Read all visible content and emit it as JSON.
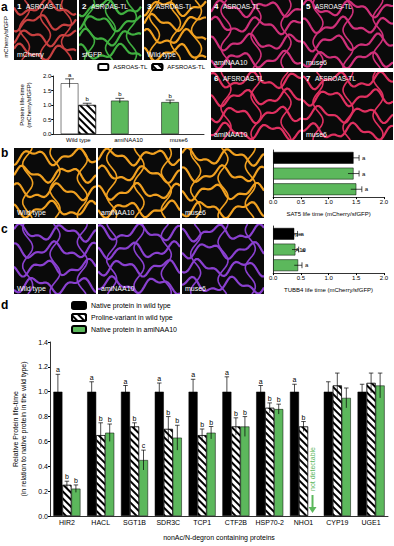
{
  "panels": [
    "a",
    "b",
    "c",
    "d"
  ],
  "side_label": "mCherry/sfGFP",
  "images": {
    "a": [
      {
        "n": "1",
        "tag": "ASROAS-TL",
        "caption": "mCherry",
        "color": "#c84040"
      },
      {
        "n": "2",
        "tag": "ASROAS-TL",
        "caption": "sfGFP",
        "color": "#40b040"
      },
      {
        "n": "3",
        "tag": "ASROAS-TL",
        "caption": "Wild type",
        "color": "#f0a020"
      },
      {
        "n": "4",
        "tag": "ASROAS-TL",
        "caption": "amiNAA10",
        "color": "#d0307a"
      },
      {
        "n": "5",
        "tag": "ASROAS-TL",
        "caption": "muse6",
        "color": "#d0307a"
      },
      {
        "n": "6",
        "tag": "AFSROAS-TL",
        "caption": "amiNAA10",
        "color": "#e03060"
      },
      {
        "n": "7",
        "tag": "AFSROAS-TL",
        "caption": "muse6",
        "color": "#e03060"
      }
    ],
    "b": [
      {
        "caption": "Wild type",
        "color": "#f0a020"
      },
      {
        "caption": "amiNAA10",
        "color": "#f0a020"
      },
      {
        "caption": "muse6",
        "color": "#f0a020"
      }
    ],
    "c": [
      {
        "caption": "Wild type",
        "color": "#8a40d0"
      },
      {
        "caption": "amiNAA10",
        "color": "#8a40d0"
      },
      {
        "caption": "muse6",
        "color": "#8a40d0"
      }
    ]
  },
  "chart_data": [
    {
      "type": "bar",
      "ylabel": "Protein life-time\n(mCherry/sfGFP)",
      "categories": [
        "Wild type",
        "amiNAA10",
        "muse6"
      ],
      "series": [
        {
          "name": "ASROAS-TL",
          "color": "#ffffff",
          "colors": [
            "#ffffff",
            "#5cb85c",
            "#5cb85c"
          ],
          "values": [
            1.75,
            1.15,
            1.1
          ],
          "errors": [
            0.15,
            0.08,
            0.07
          ],
          "letters": [
            "a",
            "b",
            "b"
          ]
        },
        {
          "name": "AFSROAS-TL",
          "color": "#ffffff",
          "marker": "hatched",
          "values": [
            1.0,
            null,
            null
          ],
          "errors": [
            0.06,
            null,
            null
          ],
          "letters": [
            "b",
            null,
            null
          ]
        }
      ],
      "ylim": [
        0,
        2
      ],
      "yticks": [
        {
          "value": 0,
          "label": "0.0"
        },
        {
          "value": 0.5,
          "label": "0.5"
        },
        {
          "value": 1,
          "label": "1.0"
        },
        {
          "value": 1.5,
          "label": "1.5"
        },
        {
          "value": 2,
          "label": "2.0"
        }
      ],
      "legend": "upper right",
      "grid": false
    },
    {
      "type": "bar",
      "orientation": "horizontal",
      "xlabel": "SAT5 life time (mCherry/sfGFP)",
      "categories": [
        "Wild type",
        "amiNAA10",
        "muse6"
      ],
      "series": [
        {
          "name": "SAT5",
          "color": "#000000",
          "colors": [
            "#000000",
            "#5cb85c",
            "#5cb85c"
          ],
          "values": [
            1.45,
            1.45,
            1.5
          ],
          "errors": [
            0.1,
            0.1,
            0.1
          ],
          "letters": [
            "a",
            "a",
            "a"
          ]
        }
      ],
      "xlim": [
        0,
        2
      ],
      "xticks": [
        {
          "value": 0,
          "label": "0.0"
        },
        {
          "value": 0.5,
          "label": "0.5"
        },
        {
          "value": 1,
          "label": "1.0"
        },
        {
          "value": 1.5,
          "label": "1.5"
        },
        {
          "value": 2,
          "label": "2.0"
        }
      ],
      "grid": false
    },
    {
      "type": "bar",
      "orientation": "horizontal",
      "xlabel": "TUBB4 life time (mCherry/sfGFP)",
      "categories": [
        "Wild type",
        "amiNAA10",
        "muse6"
      ],
      "series": [
        {
          "name": "TUBB4",
          "color": "#000000",
          "colors": [
            "#000000",
            "#5cb85c",
            "#5cb85c"
          ],
          "values": [
            0.38,
            0.4,
            0.45
          ],
          "errors": [
            0.06,
            0.06,
            0.07
          ],
          "letters": [
            "a",
            "a",
            "a"
          ]
        }
      ],
      "xlim": [
        0,
        2
      ],
      "xticks": [
        {
          "value": 0,
          "label": "0.0"
        },
        {
          "value": 0.5,
          "label": "0.5"
        },
        {
          "value": 1,
          "label": "1.0"
        },
        {
          "value": 1.5,
          "label": "1.5"
        },
        {
          "value": 2,
          "label": "2.0"
        }
      ],
      "grid": false
    },
    {
      "type": "bar",
      "ylabel": "Relative Protein life-time\n(in relation to native protein in the wild type)",
      "xlabel": "nonAc/N-degron containing proteins",
      "categories": [
        "HIR2",
        "HACL",
        "SGT1B",
        "SDR3C",
        "TCP1",
        "CTF2B",
        "HSP70-2",
        "NHO1",
        "CYP19",
        "UGE1"
      ],
      "series": [
        {
          "name": "Native protein in wild type",
          "color": "#000000",
          "values": [
            1.0,
            1.0,
            1.0,
            1.0,
            1.0,
            1.0,
            1.0,
            1.0,
            1.0,
            1.0
          ],
          "errors": [
            0.14,
            0.08,
            0.05,
            0.07,
            0.1,
            0.12,
            0.05,
            0.06,
            0.08,
            0.06
          ],
          "letters": [
            "a",
            "a",
            "a",
            "a",
            "a",
            "a",
            "a",
            "a",
            null,
            null
          ]
        },
        {
          "name": "Proline-variant in wild type",
          "color": "#ffffff",
          "marker": "hatched",
          "values": [
            0.25,
            0.65,
            0.72,
            0.7,
            0.65,
            0.72,
            0.87,
            0.72,
            1.05,
            1.07
          ],
          "errors": [
            0.03,
            0.1,
            0.03,
            0.1,
            0.05,
            0.07,
            0.04,
            0.04,
            0.1,
            0.08
          ],
          "letters": [
            "b",
            "b",
            "b",
            "b",
            "b",
            "b",
            "b",
            "b",
            null,
            null
          ]
        },
        {
          "name": "Native protein in amiNAA10",
          "color": "#5cb85c",
          "values": [
            0.22,
            0.67,
            0.45,
            0.63,
            0.67,
            0.72,
            0.86,
            null,
            0.95,
            1.05
          ],
          "errors": [
            0.03,
            0.07,
            0.08,
            0.1,
            0.05,
            0.08,
            0.04,
            null,
            0.08,
            0.1
          ],
          "letters": [
            "b",
            "b",
            "c",
            "b",
            "b",
            "b",
            "b",
            null,
            null,
            null
          ]
        }
      ],
      "annotations": [
        {
          "category": "NHO1",
          "series": "Native protein in amiNAA10",
          "text": "not detectable"
        }
      ],
      "ylim": [
        0,
        1.4
      ],
      "yticks": [
        {
          "value": 0,
          "label": "0.0"
        },
        {
          "value": 0.2,
          "label": "0.2"
        },
        {
          "value": 0.4,
          "label": "0.4"
        },
        {
          "value": 0.6,
          "label": "0.6"
        },
        {
          "value": 0.8,
          "label": "0.8"
        },
        {
          "value": 1,
          "label": "1.0"
        },
        {
          "value": 1.2,
          "label": "1.2"
        },
        {
          "value": 1.4,
          "label": "1.4"
        }
      ],
      "legend": "upper left",
      "grid": false
    }
  ]
}
